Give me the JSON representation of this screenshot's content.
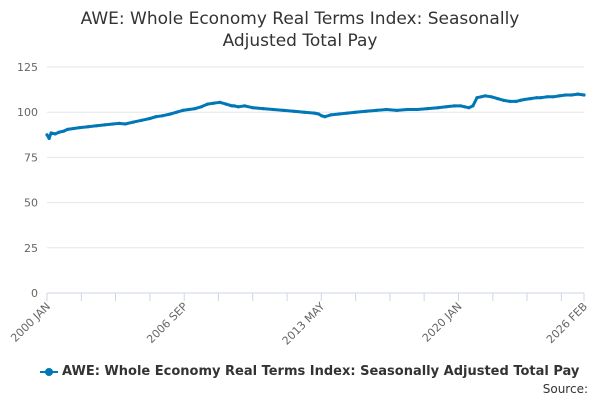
{
  "title_lines": [
    "AWE: Whole Economy Real Terms Index: Seasonally",
    "Adjusted Total Pay"
  ],
  "source_label": "Source:",
  "colors": {
    "series": "#0077b6",
    "grid": "#e6e6e6",
    "axis": "#ccd6eb"
  },
  "chart_data": {
    "type": "line",
    "title": "AWE: Whole Economy Real Terms Index: Seasonally Adjusted Total Pay",
    "xlabel": "",
    "ylabel": "",
    "ylim": [
      0,
      125
    ],
    "yticks": [
      0,
      25,
      50,
      75,
      100,
      125
    ],
    "xlim": [
      2000.0,
      2026.1
    ],
    "xtick_labels": [
      {
        "x": 2000.0,
        "label": "2000 JAN"
      },
      {
        "x": 2006.67,
        "label": "2006 SEP"
      },
      {
        "x": 2013.33,
        "label": "2013 MAY"
      },
      {
        "x": 2020.0,
        "label": "2020 JAN"
      },
      {
        "x": 2026.1,
        "label": "2026 FEB"
      }
    ],
    "xtick_marks": [
      2000.0,
      2001.67,
      2003.33,
      2005.0,
      2006.67,
      2008.33,
      2010.0,
      2011.67,
      2013.33,
      2015.0,
      2016.67,
      2018.33,
      2020.0,
      2021.67,
      2023.33,
      2025.0,
      2026.1
    ],
    "legend": "AWE: Whole Economy Real Terms Index: Seasonally Adjusted Total Pay",
    "series": [
      {
        "name": "AWE: Whole Economy Real Terms Index: Seasonally Adjusted Total Pay",
        "x": [
          2000.0,
          2000.1,
          2000.2,
          2000.4,
          2000.6,
          2000.8,
          2001.0,
          2001.3,
          2001.6,
          2002.0,
          2002.4,
          2002.8,
          2003.2,
          2003.5,
          2003.8,
          2004.2,
          2004.6,
          2005.0,
          2005.3,
          2005.6,
          2006.0,
          2006.3,
          2006.6,
          2006.9,
          2007.2,
          2007.5,
          2007.8,
          2008.1,
          2008.4,
          2008.7,
          2008.9,
          2009.0,
          2009.1,
          2009.3,
          2009.6,
          2010.0,
          2010.5,
          2011.0,
          2011.5,
          2012.0,
          2012.5,
          2013.0,
          2013.2,
          2013.35,
          2013.5,
          2013.8,
          2014.2,
          2014.6,
          2015.0,
          2015.5,
          2016.0,
          2016.5,
          2017.0,
          2017.5,
          2018.0,
          2018.5,
          2019.0,
          2019.4,
          2019.8,
          2020.1,
          2020.3,
          2020.5,
          2020.7,
          2020.9,
          2021.1,
          2021.3,
          2021.6,
          2021.9,
          2022.2,
          2022.5,
          2022.8,
          2023.0,
          2023.2,
          2023.5,
          2023.8,
          2024.0,
          2024.3,
          2024.6,
          2024.9,
          2025.2,
          2025.5,
          2025.8,
          2026.1
        ],
        "values": [
          87.5,
          85.5,
          88.5,
          88.0,
          89.0,
          89.5,
          90.5,
          91.0,
          91.5,
          92.0,
          92.5,
          93.0,
          93.5,
          93.8,
          93.5,
          94.5,
          95.5,
          96.5,
          97.5,
          98.0,
          99.0,
          100.0,
          101.0,
          101.5,
          102.0,
          103.0,
          104.5,
          105.0,
          105.5,
          104.5,
          103.8,
          103.5,
          103.5,
          103.0,
          103.5,
          102.5,
          102.0,
          101.5,
          101.0,
          100.5,
          100.0,
          99.5,
          99.0,
          98.0,
          97.5,
          98.5,
          99.0,
          99.5,
          100.0,
          100.5,
          101.0,
          101.5,
          101.0,
          101.5,
          101.5,
          102.0,
          102.5,
          103.0,
          103.5,
          103.5,
          103.0,
          102.5,
          103.5,
          108.0,
          108.5,
          109.0,
          108.5,
          107.5,
          106.5,
          106.0,
          106.0,
          106.5,
          107.0,
          107.5,
          108.0,
          108.0,
          108.5,
          108.5,
          109.0,
          109.5,
          109.5,
          110.0,
          109.5
        ]
      }
    ]
  }
}
